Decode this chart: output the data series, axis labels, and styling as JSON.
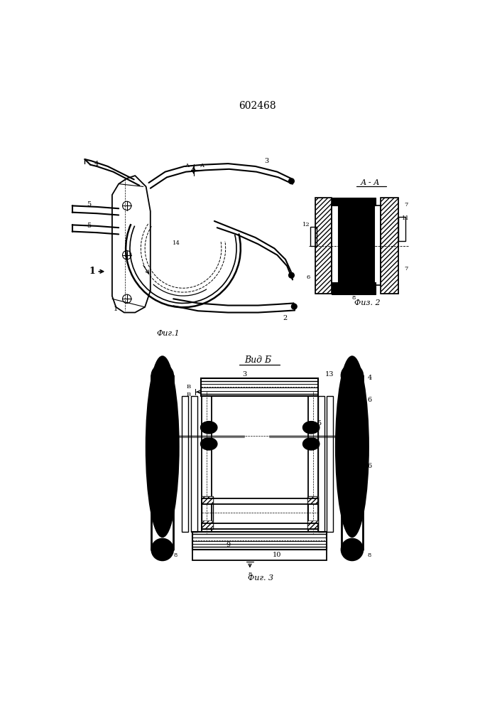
{
  "title": "602468",
  "fig1_label": "Фиг.1",
  "fig2_label": "Физ. 2",
  "fig3_label": "Фиг. 3",
  "vid_b_label": "Вид Б",
  "aa_label": "А - А",
  "bg_color": "#ffffff",
  "line_color": "#000000",
  "lw": 1.0
}
